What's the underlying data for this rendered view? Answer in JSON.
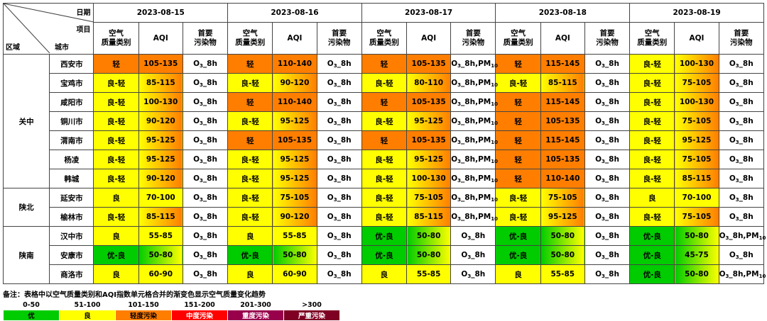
{
  "header": {
    "date_label": "日期",
    "item_label": "项目",
    "region_label": "区域",
    "city_label": "城市",
    "dates": [
      "2023-08-15",
      "2023-08-16",
      "2023-08-17",
      "2023-08-18",
      "2023-08-19"
    ],
    "col_category_l1": "空气",
    "col_category_l2": "质量类别",
    "col_aqi": "AQI",
    "col_pollutant_l1": "首要",
    "col_pollutant_l2": "污染物"
  },
  "colors": {
    "excellent": "#00cc00",
    "good": "#ffff00",
    "light": "#ff7e00",
    "moderate": "#ff0000",
    "heavy": "#99004c",
    "severe": "#7e0023"
  },
  "regions": [
    {
      "name": "关中",
      "cities": [
        {
          "name": "西安市",
          "days": [
            {
              "cat": "轻",
              "aqi": "105-135",
              "pol": "O3_8h",
              "c1": "light",
              "c2": "light"
            },
            {
              "cat": "轻",
              "aqi": "110-140",
              "pol": "O3_8h",
              "c1": "light",
              "c2": "light"
            },
            {
              "cat": "轻",
              "aqi": "105-135",
              "pol": "O3_8h,PM10",
              "c1": "light",
              "c2": "light"
            },
            {
              "cat": "轻",
              "aqi": "115-145",
              "pol": "O3_8h",
              "c1": "light",
              "c2": "light"
            },
            {
              "cat": "良-轻",
              "aqi": "100-130",
              "pol": "O3_8h",
              "c1": "good",
              "c2": "light"
            }
          ]
        },
        {
          "name": "宝鸡市",
          "days": [
            {
              "cat": "良-轻",
              "aqi": "85-115",
              "pol": "O3_8h",
              "c1": "good",
              "c2": "light"
            },
            {
              "cat": "良-轻",
              "aqi": "90-120",
              "pol": "O3_8h",
              "c1": "good",
              "c2": "light"
            },
            {
              "cat": "良-轻",
              "aqi": "80-110",
              "pol": "O3_8h,PM10",
              "c1": "good",
              "c2": "light"
            },
            {
              "cat": "良-轻",
              "aqi": "85-115",
              "pol": "O3_8h",
              "c1": "good",
              "c2": "light"
            },
            {
              "cat": "良-轻",
              "aqi": "75-105",
              "pol": "O3_8h",
              "c1": "good",
              "c2": "light"
            }
          ]
        },
        {
          "name": "咸阳市",
          "days": [
            {
              "cat": "良-轻",
              "aqi": "100-130",
              "pol": "O3_8h",
              "c1": "good",
              "c2": "light"
            },
            {
              "cat": "轻",
              "aqi": "110-140",
              "pol": "O3_8h",
              "c1": "light",
              "c2": "light"
            },
            {
              "cat": "轻",
              "aqi": "105-135",
              "pol": "O3_8h,PM10",
              "c1": "light",
              "c2": "light"
            },
            {
              "cat": "轻",
              "aqi": "115-145",
              "pol": "O3_8h",
              "c1": "light",
              "c2": "light"
            },
            {
              "cat": "良-轻",
              "aqi": "100-130",
              "pol": "O3_8h",
              "c1": "good",
              "c2": "light"
            }
          ]
        },
        {
          "name": "铜川市",
          "days": [
            {
              "cat": "良-轻",
              "aqi": "90-120",
              "pol": "O3_8h",
              "c1": "good",
              "c2": "light"
            },
            {
              "cat": "良-轻",
              "aqi": "95-125",
              "pol": "O3_8h",
              "c1": "good",
              "c2": "light"
            },
            {
              "cat": "良-轻",
              "aqi": "95-125",
              "pol": "O3_8h,PM10",
              "c1": "good",
              "c2": "light"
            },
            {
              "cat": "轻",
              "aqi": "105-135",
              "pol": "O3_8h",
              "c1": "light",
              "c2": "light"
            },
            {
              "cat": "良-轻",
              "aqi": "75-105",
              "pol": "O3_8h",
              "c1": "good",
              "c2": "light"
            }
          ]
        },
        {
          "name": "渭南市",
          "days": [
            {
              "cat": "良-轻",
              "aqi": "95-125",
              "pol": "O3_8h",
              "c1": "good",
              "c2": "light"
            },
            {
              "cat": "轻",
              "aqi": "105-135",
              "pol": "O3_8h",
              "c1": "light",
              "c2": "light"
            },
            {
              "cat": "轻",
              "aqi": "105-135",
              "pol": "O3_8h,PM10",
              "c1": "light",
              "c2": "light"
            },
            {
              "cat": "轻",
              "aqi": "115-145",
              "pol": "O3_8h",
              "c1": "light",
              "c2": "light"
            },
            {
              "cat": "良-轻",
              "aqi": "95-125",
              "pol": "O3_8h",
              "c1": "good",
              "c2": "light"
            }
          ]
        },
        {
          "name": "杨凌",
          "days": [
            {
              "cat": "良-轻",
              "aqi": "95-125",
              "pol": "O3_8h",
              "c1": "good",
              "c2": "light"
            },
            {
              "cat": "良-轻",
              "aqi": "95-125",
              "pol": "O3_8h",
              "c1": "good",
              "c2": "light"
            },
            {
              "cat": "良-轻",
              "aqi": "95-125",
              "pol": "O3_8h,PM10",
              "c1": "good",
              "c2": "light"
            },
            {
              "cat": "轻",
              "aqi": "105-135",
              "pol": "O3_8h",
              "c1": "light",
              "c2": "light"
            },
            {
              "cat": "良-轻",
              "aqi": "75-105",
              "pol": "O3_8h",
              "c1": "good",
              "c2": "light"
            }
          ]
        },
        {
          "name": "韩城",
          "days": [
            {
              "cat": "良-轻",
              "aqi": "90-120",
              "pol": "O3_8h",
              "c1": "good",
              "c2": "light"
            },
            {
              "cat": "良-轻",
              "aqi": "95-125",
              "pol": "O3_8h",
              "c1": "good",
              "c2": "light"
            },
            {
              "cat": "良-轻",
              "aqi": "100-130",
              "pol": "O3_8h,PM10",
              "c1": "good",
              "c2": "light"
            },
            {
              "cat": "轻",
              "aqi": "110-140",
              "pol": "O3_8h",
              "c1": "light",
              "c2": "light"
            },
            {
              "cat": "良-轻",
              "aqi": "85-115",
              "pol": "O3_8h",
              "c1": "good",
              "c2": "light"
            }
          ]
        }
      ]
    },
    {
      "name": "陕北",
      "cities": [
        {
          "name": "延安市",
          "days": [
            {
              "cat": "良",
              "aqi": "70-100",
              "pol": "O3_8h",
              "c1": "good",
              "c2": "good"
            },
            {
              "cat": "良-轻",
              "aqi": "75-105",
              "pol": "O3_8h",
              "c1": "good",
              "c2": "light"
            },
            {
              "cat": "良-轻",
              "aqi": "75-105",
              "pol": "O3_8h,PM10",
              "c1": "good",
              "c2": "light"
            },
            {
              "cat": "良-轻",
              "aqi": "75-105",
              "pol": "O3_8h",
              "c1": "good",
              "c2": "light"
            },
            {
              "cat": "良",
              "aqi": "70-100",
              "pol": "O3_8h",
              "c1": "good",
              "c2": "good"
            }
          ]
        },
        {
          "name": "榆林市",
          "days": [
            {
              "cat": "良-轻",
              "aqi": "85-115",
              "pol": "O3_8h",
              "c1": "good",
              "c2": "light"
            },
            {
              "cat": "良-轻",
              "aqi": "90-120",
              "pol": "O3_8h",
              "c1": "good",
              "c2": "light"
            },
            {
              "cat": "良-轻",
              "aqi": "85-115",
              "pol": "O3_8h,PM10",
              "c1": "good",
              "c2": "light"
            },
            {
              "cat": "良-轻",
              "aqi": "95-125",
              "pol": "O3_8h",
              "c1": "good",
              "c2": "light"
            },
            {
              "cat": "良-轻",
              "aqi": "75-105",
              "pol": "O3_8h",
              "c1": "good",
              "c2": "light"
            }
          ]
        }
      ]
    },
    {
      "name": "陕南",
      "cities": [
        {
          "name": "汉中市",
          "days": [
            {
              "cat": "良",
              "aqi": "55-85",
              "pol": "O3_8h",
              "c1": "good",
              "c2": "good"
            },
            {
              "cat": "良",
              "aqi": "55-85",
              "pol": "O3_8h",
              "c1": "good",
              "c2": "good"
            },
            {
              "cat": "优-良",
              "aqi": "50-80",
              "pol": "O3_8h",
              "c1": "excellent",
              "c2": "good"
            },
            {
              "cat": "优-良",
              "aqi": "50-80",
              "pol": "O3_8h",
              "c1": "excellent",
              "c2": "good"
            },
            {
              "cat": "优-良",
              "aqi": "50-80",
              "pol": "O3_8h,PM10",
              "c1": "excellent",
              "c2": "good"
            }
          ]
        },
        {
          "name": "安康市",
          "days": [
            {
              "cat": "优-良",
              "aqi": "50-80",
              "pol": "O3_8h",
              "c1": "excellent",
              "c2": "good"
            },
            {
              "cat": "优-良",
              "aqi": "50-80",
              "pol": "O3_8h",
              "c1": "excellent",
              "c2": "good"
            },
            {
              "cat": "优-良",
              "aqi": "50-80",
              "pol": "O3_8h",
              "c1": "excellent",
              "c2": "good"
            },
            {
              "cat": "优-良",
              "aqi": "50-80",
              "pol": "O3_8h",
              "c1": "excellent",
              "c2": "good"
            },
            {
              "cat": "优-良",
              "aqi": "45-75",
              "pol": "O3_8h",
              "c1": "excellent",
              "c2": "good"
            }
          ]
        },
        {
          "name": "商洛市",
          "days": [
            {
              "cat": "良",
              "aqi": "60-90",
              "pol": "O3_8h",
              "c1": "good",
              "c2": "good"
            },
            {
              "cat": "良",
              "aqi": "60-90",
              "pol": "O3_8h",
              "c1": "good",
              "c2": "good"
            },
            {
              "cat": "良",
              "aqi": "55-85",
              "pol": "O3_8h",
              "c1": "good",
              "c2": "good"
            },
            {
              "cat": "良",
              "aqi": "55-85",
              "pol": "O3_8h",
              "c1": "good",
              "c2": "good"
            },
            {
              "cat": "优-良",
              "aqi": "50-80",
              "pol": "O3_8h,PM10",
              "c1": "excellent",
              "c2": "good"
            }
          ]
        }
      ]
    }
  ],
  "note": "备注：表格中以空气质量类别和AQI指数单元格合并的渐变色显示空气质量变化趋势",
  "legend": [
    {
      "range": "0-50",
      "label": "优",
      "color": "#00cc00",
      "text_color": "#000000"
    },
    {
      "range": "51-100",
      "label": "良",
      "color": "#ffff00",
      "text_color": "#000000"
    },
    {
      "range": "101-150",
      "label": "轻度污染",
      "color": "#ff7e00",
      "text_color": "#000000"
    },
    {
      "range": "151-200",
      "label": "中度污染",
      "color": "#ff0000",
      "text_color": "#ffffff"
    },
    {
      "range": "201-300",
      "label": "重度污染",
      "color": "#99004c",
      "text_color": "#ffffff"
    },
    {
      "range": ">300",
      "label": "严重污染",
      "color": "#7e0023",
      "text_color": "#ffffff"
    }
  ]
}
